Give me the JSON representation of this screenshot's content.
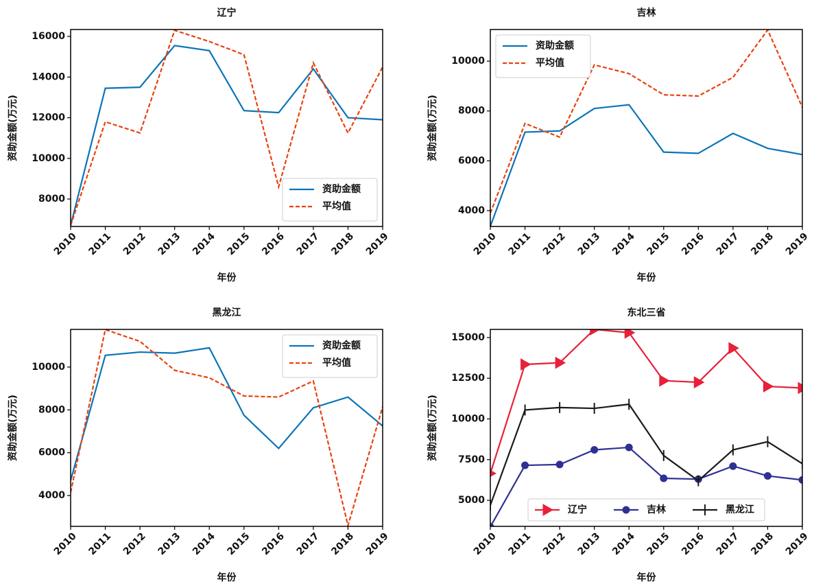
{
  "chart_data": [
    {
      "type": "line",
      "title": "辽宁",
      "x_label": "年份",
      "y_label": "资助金额(万元)",
      "x": [
        2010,
        2011,
        2012,
        2013,
        2014,
        2015,
        2016,
        2017,
        2018,
        2019
      ],
      "xlim": [
        2010,
        2019
      ],
      "xticks": [
        2010,
        2011,
        2012,
        2013,
        2014,
        2015,
        2016,
        2017,
        2018,
        2019
      ],
      "ylim": [
        6650,
        16340
      ],
      "yticks": [
        8000,
        10000,
        12000,
        14000,
        16000
      ],
      "legend": "lower right",
      "series": [
        {
          "name": "资助金额",
          "color": "#0a74b8",
          "style": "solid",
          "values": [
            6700,
            13450,
            13500,
            15550,
            15300,
            12350,
            12250,
            14400,
            12000,
            11900
          ]
        },
        {
          "name": "平均值",
          "color": "#e8410e",
          "style": "dashed",
          "values": [
            6700,
            11800,
            11250,
            16300,
            15750,
            15100,
            8600,
            14700,
            11250,
            14500
          ]
        }
      ]
    },
    {
      "type": "line",
      "title": "吉林",
      "x_label": "年份",
      "y_label": "资助金额(万元)",
      "x": [
        2010,
        2011,
        2012,
        2013,
        2014,
        2015,
        2016,
        2017,
        2018,
        2019
      ],
      "xlim": [
        2010,
        2019
      ],
      "xticks": [
        2010,
        2011,
        2012,
        2013,
        2014,
        2015,
        2016,
        2017,
        2018,
        2019
      ],
      "ylim": [
        3365,
        11270
      ],
      "yticks": [
        4000,
        6000,
        8000,
        10000
      ],
      "legend": "upper left",
      "series": [
        {
          "name": "资助金额",
          "color": "#0a74b8",
          "style": "solid",
          "values": [
            3370,
            7150,
            7200,
            8100,
            8250,
            6350,
            6300,
            7100,
            6500,
            6250
          ]
        },
        {
          "name": "平均值",
          "color": "#e8410e",
          "style": "dashed",
          "values": [
            3900,
            7500,
            6950,
            9850,
            9500,
            8650,
            8600,
            9350,
            11250,
            8150
          ]
        }
      ]
    },
    {
      "type": "line",
      "title": "黑龙江",
      "x_label": "年份",
      "y_label": "资助金额(万元)",
      "x": [
        2010,
        2011,
        2012,
        2013,
        2014,
        2015,
        2016,
        2017,
        2018,
        2019
      ],
      "xlim": [
        2010,
        2019
      ],
      "xticks": [
        2010,
        2011,
        2012,
        2013,
        2014,
        2015,
        2016,
        2017,
        2018,
        2019
      ],
      "ylim": [
        2560,
        11760
      ],
      "yticks": [
        4000,
        6000,
        8000,
        10000
      ],
      "legend": "upper right",
      "series": [
        {
          "name": "资助金额",
          "color": "#0a74b8",
          "style": "solid",
          "values": [
            4700,
            10550,
            10700,
            10650,
            10900,
            7750,
            6200,
            8100,
            8600,
            7250
          ]
        },
        {
          "name": "平均值",
          "color": "#e8410e",
          "style": "dashed",
          "values": [
            4150,
            11750,
            11200,
            9850,
            9500,
            8650,
            8600,
            9350,
            2600,
            8150
          ]
        }
      ]
    },
    {
      "type": "line",
      "title": "东北三省",
      "x_label": "年份",
      "y_label": "资助金额(万元)",
      "x": [
        2010,
        2011,
        2012,
        2013,
        2014,
        2015,
        2016,
        2017,
        2018,
        2019
      ],
      "xlim": [
        2010,
        2019
      ],
      "xticks": [
        2010,
        2011,
        2012,
        2013,
        2014,
        2015,
        2016,
        2017,
        2018,
        2019
      ],
      "ylim": [
        3400,
        15500
      ],
      "yticks": [
        5000,
        7500,
        10000,
        12500,
        15000
      ],
      "legend": "lower center",
      "series": [
        {
          "name": "辽宁",
          "color": "#e8203a",
          "style": "solid",
          "marker": "triangle-right",
          "values": [
            6650,
            13350,
            13450,
            15500,
            15300,
            12350,
            12250,
            14350,
            12000,
            11900
          ]
        },
        {
          "name": "吉林",
          "color": "#2e3192",
          "style": "solid",
          "marker": "circle",
          "values": [
            3370,
            7150,
            7200,
            8100,
            8250,
            6350,
            6300,
            7100,
            6500,
            6250
          ]
        },
        {
          "name": "黑龙江",
          "color": "#1a1a1a",
          "style": "solid",
          "marker": "vline",
          "values": [
            4700,
            10550,
            10700,
            10650,
            10900,
            7750,
            6200,
            8100,
            8600,
            7250
          ]
        }
      ]
    }
  ]
}
